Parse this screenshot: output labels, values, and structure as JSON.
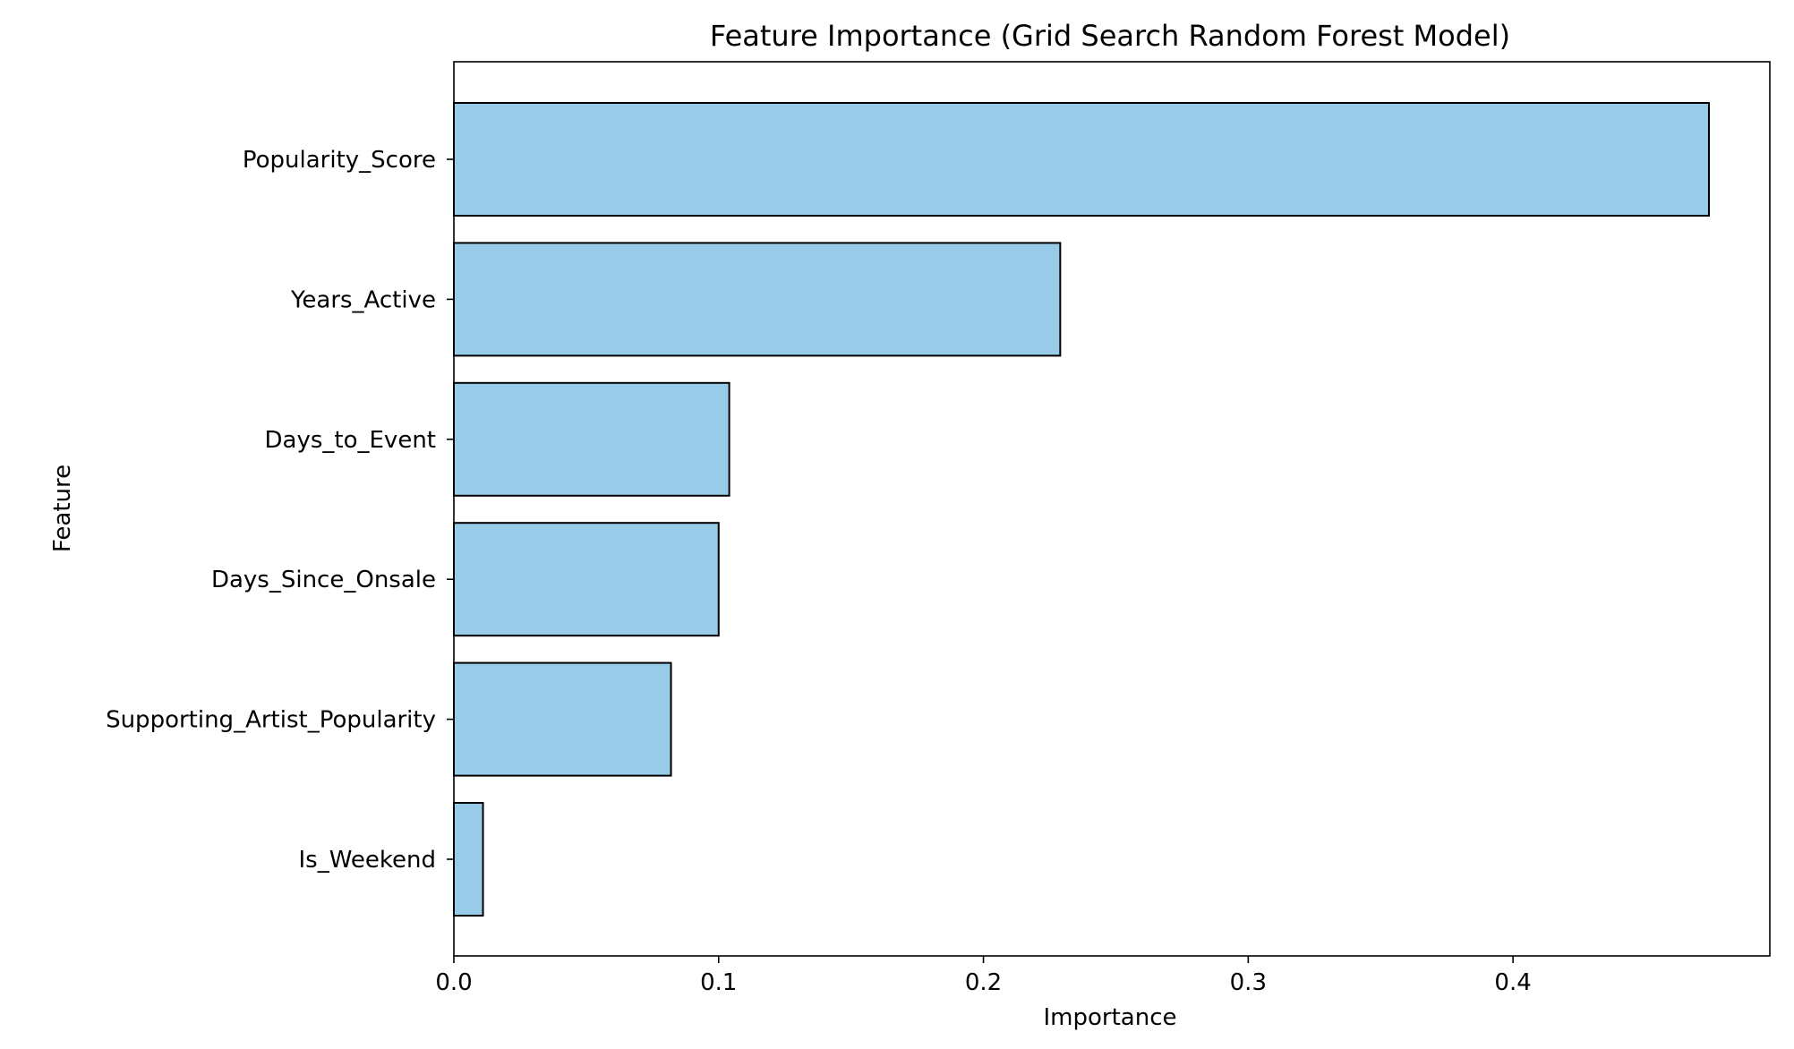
{
  "chart_data": {
    "type": "bar",
    "orientation": "horizontal",
    "title": "Feature Importance (Grid Search Random Forest Model)",
    "xlabel": "Importance",
    "ylabel": "Feature",
    "categories": [
      "Popularity_Score",
      "Years_Active",
      "Days_to_Event",
      "Days_Since_Onsale",
      "Supporting_Artist_Popularity",
      "Is_Weekend"
    ],
    "values": [
      0.474,
      0.229,
      0.104,
      0.1,
      0.082,
      0.011
    ],
    "xlim": [
      0,
      0.497
    ],
    "xticks": [
      0.0,
      0.1,
      0.2,
      0.3,
      0.4
    ],
    "xtick_labels": [
      "0.0",
      "0.1",
      "0.2",
      "0.3",
      "0.4"
    ],
    "grid": false,
    "legend": "none",
    "colors": {
      "bar_fill": "#97cbe8",
      "bar_edge": "#000000"
    }
  }
}
